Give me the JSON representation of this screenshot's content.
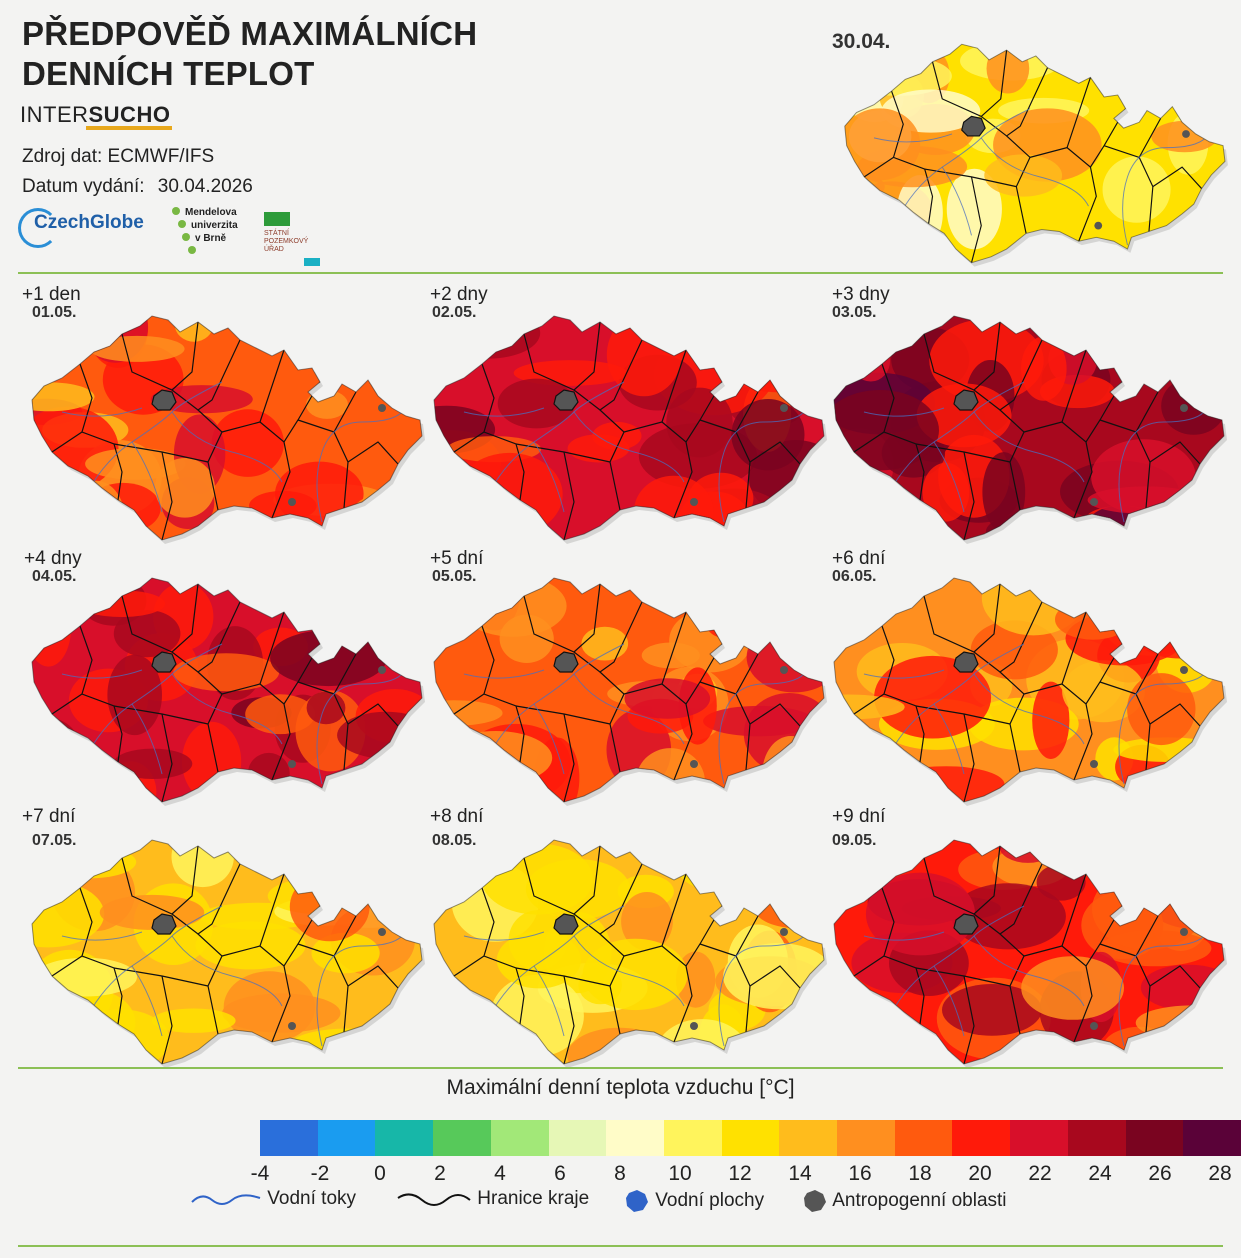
{
  "header": {
    "title_line1": "PŘEDPOVĚĎ MAXIMÁLNÍCH",
    "title_line2": "DENNÍCH TEPLOT",
    "brand_a": "INTER",
    "brand_b": "SUCHO",
    "source": "Zdroj dat: ECMWF/IFS",
    "issue_label": "Datum vydání:",
    "issue_date": "30.04.2026"
  },
  "logos": {
    "czechglobe": "CzechGlobe",
    "mendelu": [
      "Mendelova",
      "univerzita",
      "v Brně"
    ],
    "spu": [
      "STÁTNÍ",
      "POZEMKOVÝ",
      "ÚŘAD"
    ]
  },
  "today": {
    "date": "30.04.",
    "level": 12
  },
  "forecasts": [
    {
      "label": "+1 den",
      "date": "01.05.",
      "level": 18
    },
    {
      "label": "+2 dny",
      "date": "02.05.",
      "level": 22
    },
    {
      "label": "+3 dny",
      "date": "03.05.",
      "level": 24
    },
    {
      "label": "+4 dny",
      "date": "04.05.",
      "level": 23
    },
    {
      "label": "+5 dní",
      "date": "05.05.",
      "level": 18
    },
    {
      "label": "+6 dní",
      "date": "06.05.",
      "level": 17
    },
    {
      "label": "+7 dní",
      "date": "07.05.",
      "level": 15
    },
    {
      "label": "+8 dní",
      "date": "08.05.",
      "level": 14
    },
    {
      "label": "+9 dní",
      "date": "09.05.",
      "level": 20
    }
  ],
  "legend": {
    "title": "Maximální denní teplota vzduchu [°C]",
    "ticks": [
      "-4",
      "-2",
      "0",
      "2",
      "4",
      "6",
      "8",
      "10",
      "12",
      "14",
      "16",
      "18",
      "20",
      "22",
      "24",
      "26",
      "28"
    ],
    "colors": [
      "#2a6fdb",
      "#1a9cf0",
      "#17b7a8",
      "#57c95a",
      "#a2e878",
      "#e6f7b6",
      "#fffcc8",
      "#fff45c",
      "#ffe100",
      "#ffbc1c",
      "#ff8f1f",
      "#ff5a0e",
      "#ff1a0a",
      "#d80f2a",
      "#a8081e",
      "#7a0420",
      "#5a0238"
    ],
    "keys": {
      "rivers": "Vodní toky",
      "borders": "Hranice kraje",
      "water": "Vodní plochy",
      "urban": "Antropogenní oblasti"
    }
  }
}
